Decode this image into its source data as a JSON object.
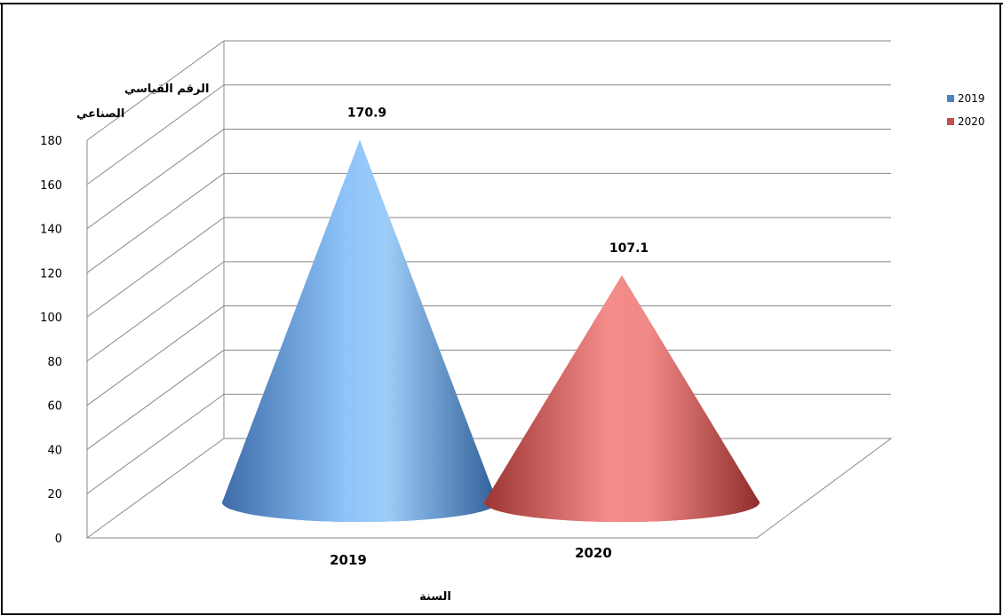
{
  "header": {
    "caption_left": "",
    "caption_right": ""
  },
  "chart_data": {
    "type": "bar",
    "subtype": "3d-cone",
    "categories": [
      "2019",
      "2020"
    ],
    "series": [
      {
        "name": "2019",
        "values": [
          170.9,
          null
        ],
        "color": "#4f81bd"
      },
      {
        "name": "2020",
        "values": [
          null,
          107.1
        ],
        "color": "#c0504d"
      }
    ],
    "data_labels": [
      "170.9",
      "107.1"
    ],
    "xlabel": "السنة",
    "ylabel_lines": [
      "الرقم القياسي",
      "الصناعي"
    ],
    "ylim": [
      0,
      180
    ],
    "yticks": [
      0,
      20,
      40,
      60,
      80,
      100,
      120,
      140,
      160,
      180
    ],
    "grid": true,
    "legend": {
      "position": "top-right",
      "entries": [
        "2019",
        "2020"
      ]
    }
  }
}
